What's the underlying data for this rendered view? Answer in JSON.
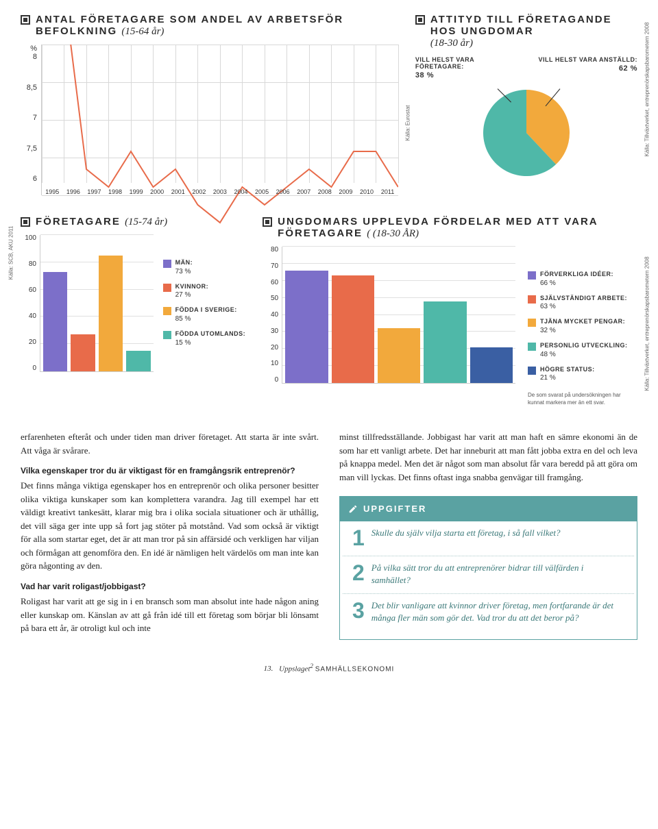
{
  "lineChart": {
    "title": "ANTAL FÖRETAGARE SOM ANDEL AV ARBETSFÖR BEFOLKNING",
    "subtitle": "(15-64 år)",
    "yUnit": "%",
    "yTicks": [
      "8",
      "8,5",
      "7",
      "7,5",
      "6"
    ],
    "xLabels": [
      "1995",
      "1996",
      "1997",
      "1998",
      "1999",
      "2000",
      "2001",
      "2002",
      "2003",
      "2004",
      "2005",
      "2006",
      "2007",
      "2008",
      "2009",
      "2010",
      "2011"
    ],
    "values": [
      8.5,
      8.3,
      7.3,
      7.2,
      7.4,
      7.2,
      7.3,
      7.1,
      7.0,
      7.2,
      7.1,
      7.2,
      7.3,
      7.2,
      7.4,
      7.4,
      7.2
    ],
    "ylim": [
      6,
      8
    ],
    "lineColor": "#e86b4a",
    "lineWidth": 2,
    "gridColor": "#d8d8d8",
    "source": "Källa: Eurostat"
  },
  "pieChart": {
    "title": "ATTITYD TILL FÖRETAGANDE HOS UNGDOMAR",
    "subtitle": "(18-30 år)",
    "slices": [
      {
        "label": "VILL HELST VARA FÖRETAGARE:",
        "value": "38 %",
        "pct": 38,
        "color": "#f2a93c"
      },
      {
        "label": "VILL HELST VARA ANSTÄLLD:",
        "value": "62 %",
        "pct": 62,
        "color": "#4fb8a8"
      }
    ],
    "source": "Källa: Tillväxtverket, entreprenörskapsbarometern 2008"
  },
  "barLeft": {
    "title": "FÖRETAGARE",
    "subtitle": "(15-74 år)",
    "yTicks": [
      "0",
      "20",
      "40",
      "60",
      "80",
      "100"
    ],
    "yMax": 100,
    "bars": [
      {
        "value": 73,
        "color": "#7c6fc9"
      },
      {
        "value": 27,
        "color": "#e86b4a"
      },
      {
        "value": 85,
        "color": "#f2a93c"
      },
      {
        "value": 15,
        "color": "#4fb8a8"
      }
    ],
    "legend": [
      {
        "label": "MÄN:",
        "pct": "73 %",
        "color": "#7c6fc9"
      },
      {
        "label": "KVINNOR:",
        "pct": "27 %",
        "color": "#e86b4a"
      },
      {
        "label": "FÖDDA I SVERIGE:",
        "pct": "85 %",
        "color": "#f2a93c"
      },
      {
        "label": "FÖDDA UTOMLANDS:",
        "pct": "15 %",
        "color": "#4fb8a8"
      }
    ],
    "source": "Källa: SCB, AKU 2011"
  },
  "barRight": {
    "title": "UNGDOMARS UPPLEVDA FÖRDELAR MED ATT VARA FÖRETAGARE",
    "subtitle": "( (18-30 ÅR)",
    "yTicks": [
      "0",
      "10",
      "20",
      "30",
      "40",
      "50",
      "60",
      "70",
      "80"
    ],
    "yMax": 80,
    "bars": [
      {
        "value": 66,
        "color": "#7c6fc9"
      },
      {
        "value": 63,
        "color": "#e86b4a"
      },
      {
        "value": 32,
        "color": "#f2a93c"
      },
      {
        "value": 48,
        "color": "#4fb8a8"
      },
      {
        "value": 21,
        "color": "#3a5fa3"
      }
    ],
    "legend": [
      {
        "label": "FÖRVERKLIGA IDÉER:",
        "pct": "66 %",
        "color": "#7c6fc9"
      },
      {
        "label": "SJÄLVSTÄNDIGT ARBETE:",
        "pct": "63 %",
        "color": "#e86b4a"
      },
      {
        "label": "TJÄNA MYCKET PENGAR:",
        "pct": "32 %",
        "color": "#f2a93c"
      },
      {
        "label": "PERSONLIG UTVECKLING:",
        "pct": "48 %",
        "color": "#4fb8a8"
      },
      {
        "label": "HÖGRE STATUS:",
        "pct": "21 %",
        "color": "#3a5fa3"
      }
    ],
    "note": "De som svarat på undersökningen har kunnat markera mer än ett svar.",
    "source": "Källa: Tillväxtverket, entreprenörskapsbarometern 2008"
  },
  "body": {
    "leftCol": {
      "p1": "erfarenheten efteråt och under tiden man driver företaget. Att starta är inte svårt. Att våga är svårare.",
      "q1": "Vilka egenskaper tror du är viktigast för en framgångsrik entreprenör?",
      "p2": "Det finns många viktiga egenskaper hos en entreprenör och olika personer besitter olika viktiga kunskaper som kan komplettera varandra. Jag till exempel har ett väldigt kreativt tankesätt, klarar mig bra i olika sociala situationer och är uthållig, det vill säga ger inte upp så fort jag stöter på motstånd. Vad som också är viktigt för alla som startar eget, det är att man tror på sin affärsidé och verkligen har viljan och förmågan att genomföra den. En idé är nämligen helt värdelös om man inte kan göra någonting av den.",
      "q2": "Vad har varit roligast/jobbigast?",
      "p3": "Roligast har varit att ge sig in i en bransch som man absolut inte hade någon aning eller kunskap om. Känslan av att gå från idé till ett företag som börjar bli lönsamt på bara ett år, är otroligt kul och inte"
    },
    "rightCol": {
      "p1": "minst tillfredsställande. Jobbigast har varit att man haft en sämre ekonomi än de som har ett vanligt arbete. Det har inneburit att man fått jobba extra en del och leva på knappa medel. Men det är något som man absolut får vara beredd på att göra om man vill lyckas. Det finns oftast inga snabba genvägar till framgång."
    }
  },
  "uppgifter": {
    "title": "UPPGIFTER",
    "tasks": [
      "Skulle du själv vilja starta ett företag, i så fall vilket?",
      "På vilka sätt tror du att entreprenörer bidrar till välfärden i samhället?",
      "Det blir vanligare att kvinnor driver företag, men fortfarande är det många fler män som gör det. Vad tror du att det beror på?"
    ]
  },
  "footer": {
    "page": "13.",
    "titleItalic": "Uppslaget",
    "sup": "2",
    "caps": "SAMHÄLLSEKONOMI"
  }
}
